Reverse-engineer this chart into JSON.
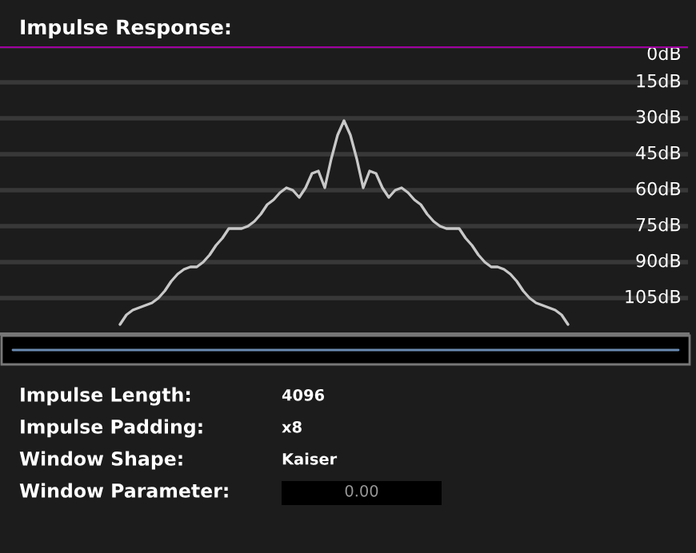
{
  "chart_data": {
    "type": "line",
    "title": "Impulse Response:",
    "categories": [
      null,
      null,
      null,
      null,
      null,
      null,
      null,
      null,
      null,
      null,
      null,
      null,
      null,
      null,
      null,
      null,
      null,
      null,
      null,
      null,
      null,
      null,
      null,
      null,
      null,
      null,
      null,
      null,
      null,
      null,
      null,
      null,
      null,
      null,
      null,
      null,
      null,
      null,
      null,
      null,
      null,
      null,
      null,
      null,
      null,
      null,
      null,
      null,
      null,
      null,
      null,
      null,
      null,
      null,
      null,
      null,
      null,
      null,
      null,
      null,
      null,
      null,
      null,
      null,
      null,
      null,
      null,
      null,
      null,
      null,
      null,
      null,
      null
    ],
    "series": [
      {
        "color": "#c8c8c8",
        "values": [
          null,
          116,
          112,
          110,
          109,
          108,
          107,
          105,
          102,
          98,
          95,
          93,
          92,
          92,
          90,
          87,
          83,
          80,
          76,
          76,
          76,
          75,
          73,
          70,
          66,
          64,
          61,
          59,
          60,
          63,
          59,
          53,
          52,
          59,
          47,
          37,
          31,
          37,
          47,
          59,
          52,
          53,
          59,
          63,
          60,
          59,
          61,
          64,
          66,
          70,
          73,
          75,
          76,
          76,
          76,
          80,
          83,
          87,
          90,
          92,
          92,
          93,
          95,
          98,
          102,
          105,
          107,
          108,
          109,
          110,
          112,
          116,
          null
        ]
      }
    ],
    "ylim": [
      120,
      0
    ],
    "yticks": [
      {
        "value": 0,
        "label": "0dB"
      },
      {
        "value": 15,
        "label": "15dB"
      },
      {
        "value": 30,
        "label": "30dB"
      },
      {
        "value": 45,
        "label": "45dB"
      },
      {
        "value": 60,
        "label": "60dB"
      },
      {
        "value": 75,
        "label": "75dB"
      },
      {
        "value": 90,
        "label": "90dB"
      },
      {
        "value": 105,
        "label": "105dB"
      }
    ],
    "tick_labels": "y",
    "grid": "y",
    "line_style": "solid",
    "legend": false,
    "ref_lines": [
      {
        "axis": "y",
        "value": 0,
        "color": "#a000a0"
      }
    ],
    "annotations": [
      "Impulse Length:",
      "4096",
      "Impulse Padding:",
      "x8",
      "Window Shape:",
      "Kaiser",
      "Window Parameter:",
      "0.00"
    ]
  }
}
